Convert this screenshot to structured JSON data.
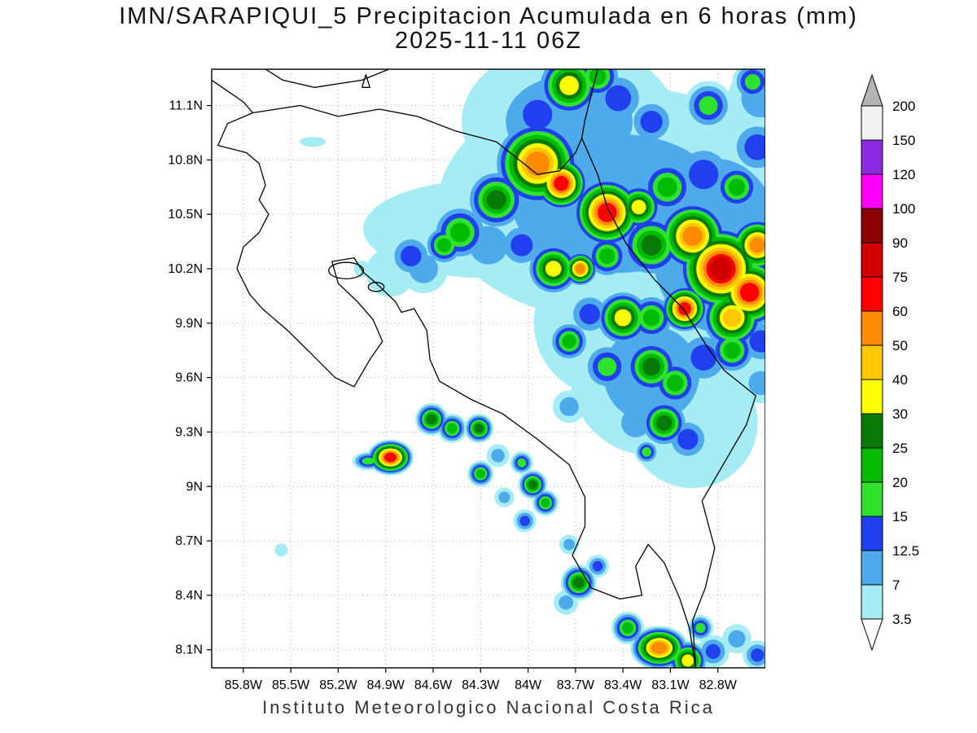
{
  "chart_data": {
    "type": "heatmap",
    "title_line1": "IMN/SARAPIQUI_5 Precipitacion Acumulada en 6 horas (mm)",
    "title_line2": "2025-11-11 06Z",
    "footer": "Instituto Meteorologico Nacional Costa Rica",
    "units": "mm",
    "proj": {
      "lon_left_w": 86.0,
      "lon_right_w": 82.5,
      "lat_top": 11.3,
      "lat_bottom": 8.0
    },
    "x_ticks": {
      "lons": [
        85.8,
        85.5,
        85.2,
        84.9,
        84.6,
        84.3,
        84.0,
        83.7,
        83.4,
        83.1,
        82.8
      ],
      "labels": [
        "85.8W",
        "85.5W",
        "85.2W",
        "84.9W",
        "84.6W",
        "84.3W",
        "84W",
        "83.7W",
        "83.4W",
        "83.1W",
        "82.8W"
      ]
    },
    "y_ticks": {
      "lats": [
        11.1,
        10.8,
        10.5,
        10.2,
        9.9,
        9.6,
        9.3,
        9.0,
        8.7,
        8.4,
        8.1
      ],
      "labels": [
        "11.1N",
        "10.8N",
        "10.5N",
        "10.2N",
        "9.9N",
        "9.6N",
        "9.3N",
        "9N",
        "8.7N",
        "8.4N",
        "8.1N"
      ]
    },
    "levels_mm": [
      3.5,
      7,
      12.5,
      15,
      20,
      25,
      30,
      40,
      50,
      60,
      75,
      90,
      100,
      120,
      150,
      200
    ],
    "level_colors": [
      "#A6ECF5",
      "#4FAAEB",
      "#2040F0",
      "#2EE22E",
      "#00BB00",
      "#077A07",
      "#FFFF00",
      "#FFC800",
      "#FF8C00",
      "#FF0000",
      "#D00000",
      "#8B0000",
      "#FF00FF",
      "#8A2BE2",
      "#F2F2F2"
    ],
    "colorbar": {
      "labels_top_to_bottom": [
        "200",
        "150",
        "120",
        "100",
        "90",
        "75",
        "60",
        "50",
        "40",
        "30",
        "25",
        "20",
        "15",
        "12.5",
        "7",
        "3.5"
      ],
      "arrow_top_color": "#B4B4B4",
      "arrow_bottom_color": "#FFFFFF"
    },
    "grid": {
      "visible": true,
      "style": "dotted",
      "color": "#AFAFAF"
    },
    "cells_format": "[lon_west_deg, lat_deg, radius_px, peak_level_index_1to15, x_stretch, y_stretch]",
    "cells": [
      [
        83.43,
        10.56,
        170,
        2,
        1.3,
        0.85
      ],
      [
        82.81,
        10.33,
        150,
        2,
        0.9,
        1.2
      ],
      [
        84.25,
        10.42,
        110,
        1,
        1.4,
        0.55
      ],
      [
        83.74,
        11.01,
        120,
        2,
        1.1,
        0.8
      ],
      [
        83.22,
        9.62,
        100,
        2,
        1,
        1
      ],
      [
        82.96,
        9.35,
        80,
        1,
        1,
        1
      ],
      [
        83.5,
        9.9,
        90,
        1,
        1,
        1
      ],
      [
        83.74,
        11.21,
        40,
        7,
        1,
        1
      ],
      [
        83.56,
        11.26,
        30,
        5,
        1,
        1
      ],
      [
        83.94,
        10.78,
        55,
        9,
        1,
        1
      ],
      [
        83.79,
        10.67,
        35,
        10,
        1,
        1
      ],
      [
        84.2,
        10.58,
        38,
        6,
        1,
        1
      ],
      [
        84.43,
        10.4,
        35,
        5,
        1,
        1
      ],
      [
        84.53,
        10.33,
        25,
        5,
        1,
        1
      ],
      [
        84.74,
        10.27,
        28,
        3,
        1,
        1
      ],
      [
        83.5,
        10.51,
        45,
        10,
        1,
        1
      ],
      [
        83.3,
        10.54,
        30,
        7,
        1,
        1
      ],
      [
        83.12,
        10.65,
        35,
        5,
        1,
        1
      ],
      [
        82.89,
        10.72,
        40,
        3,
        1,
        1
      ],
      [
        82.68,
        10.65,
        30,
        5,
        1,
        1
      ],
      [
        82.55,
        10.87,
        35,
        3,
        1,
        1
      ],
      [
        82.86,
        11.1,
        30,
        4,
        1,
        1
      ],
      [
        83.22,
        11.01,
        30,
        3,
        1,
        1
      ],
      [
        84.04,
        10.33,
        30,
        3,
        1,
        1
      ],
      [
        83.84,
        10.2,
        33,
        7,
        1,
        1
      ],
      [
        83.67,
        10.2,
        22,
        9,
        1,
        1
      ],
      [
        83.5,
        10.27,
        28,
        5,
        1,
        1
      ],
      [
        83.22,
        10.33,
        40,
        6,
        1,
        1
      ],
      [
        82.96,
        10.38,
        45,
        9,
        1,
        1
      ],
      [
        82.78,
        10.2,
        55,
        11,
        1,
        1
      ],
      [
        82.6,
        10.07,
        45,
        10,
        1,
        1
      ],
      [
        82.55,
        10.33,
        35,
        9,
        1,
        1
      ],
      [
        82.71,
        9.93,
        40,
        8,
        1,
        1
      ],
      [
        83.01,
        9.98,
        30,
        10,
        1,
        1
      ],
      [
        83.22,
        9.93,
        30,
        5,
        1,
        1
      ],
      [
        83.4,
        9.93,
        35,
        7,
        1,
        1
      ],
      [
        83.61,
        9.95,
        28,
        3,
        1,
        1
      ],
      [
        83.74,
        9.8,
        25,
        5,
        1,
        1
      ],
      [
        83.5,
        9.66,
        30,
        4,
        1,
        1
      ],
      [
        83.22,
        9.66,
        35,
        6,
        1,
        1
      ],
      [
        83.07,
        9.57,
        30,
        5,
        1,
        1
      ],
      [
        82.89,
        9.71,
        35,
        3,
        1,
        1
      ],
      [
        82.71,
        9.75,
        30,
        5,
        1,
        1
      ],
      [
        83.14,
        9.35,
        30,
        6,
        1,
        1
      ],
      [
        82.99,
        9.26,
        28,
        3,
        1,
        1
      ],
      [
        83.32,
        9.35,
        30,
        2,
        1,
        1
      ],
      [
        84.87,
        10.18,
        30,
        1,
        1,
        1
      ],
      [
        84.66,
        10.2,
        30,
        2,
        1,
        1
      ],
      [
        84.25,
        10.33,
        40,
        2,
        1,
        1
      ],
      [
        83.94,
        11.05,
        40,
        3,
        1,
        1
      ],
      [
        84.2,
        11.14,
        30,
        1,
        1,
        1
      ],
      [
        83.74,
        11.3,
        40,
        2,
        1,
        1
      ],
      [
        83.43,
        11.14,
        35,
        3,
        1,
        1
      ],
      [
        82.53,
        9.8,
        30,
        3,
        1,
        1
      ],
      [
        82.53,
        11.14,
        40,
        2,
        1,
        1
      ],
      [
        82.58,
        11.23,
        25,
        4,
        1,
        1
      ],
      [
        83.74,
        9.44,
        20,
        2,
        1,
        1
      ],
      [
        82.53,
        9.57,
        25,
        2,
        1,
        1
      ],
      [
        83.25,
        9.19,
        15,
        4,
        1,
        1
      ],
      [
        84.61,
        9.37,
        20,
        6,
        1,
        1
      ],
      [
        84.48,
        9.32,
        18,
        5,
        1,
        1
      ],
      [
        84.31,
        9.32,
        18,
        6,
        1,
        1
      ],
      [
        84.87,
        9.16,
        22,
        10,
        1.3,
        1
      ],
      [
        85.01,
        9.14,
        14,
        4,
        1.4,
        0.8
      ],
      [
        84.3,
        9.07,
        16,
        5,
        1,
        1
      ],
      [
        84.19,
        9.17,
        14,
        2,
        1,
        1
      ],
      [
        84.04,
        9.13,
        14,
        4,
        1,
        1
      ],
      [
        83.97,
        9.01,
        18,
        6,
        1,
        1
      ],
      [
        83.89,
        8.91,
        16,
        5,
        1,
        1
      ],
      [
        84.02,
        8.81,
        14,
        3,
        1,
        1
      ],
      [
        84.15,
        8.94,
        12,
        2,
        1,
        1
      ],
      [
        83.68,
        8.47,
        22,
        6,
        1,
        1
      ],
      [
        83.76,
        8.36,
        15,
        2,
        1,
        1
      ],
      [
        83.37,
        8.22,
        20,
        5,
        1,
        1
      ],
      [
        83.17,
        8.11,
        30,
        9,
        1.2,
        0.9
      ],
      [
        82.99,
        8.04,
        25,
        7,
        1,
        1
      ],
      [
        82.83,
        8.09,
        20,
        3,
        1,
        1
      ],
      [
        82.68,
        8.16,
        18,
        2,
        1,
        1
      ],
      [
        82.55,
        8.07,
        18,
        3,
        1,
        1
      ],
      [
        82.91,
        8.22,
        16,
        4,
        1,
        1
      ],
      [
        85.56,
        8.65,
        8,
        1,
        1,
        1
      ],
      [
        85.36,
        10.9,
        10,
        1,
        1.6,
        0.6
      ],
      [
        83.74,
        8.68,
        12,
        2,
        1,
        1
      ],
      [
        83.56,
        8.56,
        14,
        3,
        1,
        1
      ],
      [
        85.05,
        10.2,
        10,
        1,
        1,
        1
      ],
      [
        84.92,
        10.36,
        10,
        1,
        1,
        1
      ]
    ],
    "coastlines": {
      "nicaragua_pacific_coast": [
        [
          86.0,
          11.24
        ],
        [
          85.9,
          11.18
        ],
        [
          85.8,
          11.12
        ],
        [
          85.74,
          11.06
        ]
      ],
      "lake_nicaragua_shore": [
        [
          85.66,
          11.3
        ],
        [
          85.55,
          11.24
        ],
        [
          85.35,
          11.2
        ],
        [
          85.05,
          11.24
        ],
        [
          84.88,
          11.3
        ]
      ],
      "ometepe_island": [
        [
          85.05,
          11.2
        ],
        [
          85.0,
          11.2
        ],
        [
          85.025,
          11.27
        ],
        [
          85.05,
          11.2
        ]
      ],
      "northern_border": [
        [
          85.74,
          11.06
        ],
        [
          85.44,
          11.1
        ],
        [
          85.2,
          11.04
        ],
        [
          84.94,
          11.08
        ],
        [
          84.7,
          11.04
        ],
        [
          84.46,
          10.96
        ],
        [
          84.2,
          10.9
        ],
        [
          83.94,
          10.72
        ],
        [
          83.8,
          10.74
        ],
        [
          83.7,
          10.84
        ],
        [
          83.66,
          10.92
        ]
      ],
      "nicaragua_caribbean_coast": [
        [
          83.56,
          11.3
        ],
        [
          83.6,
          11.16
        ],
        [
          83.64,
          11.02
        ],
        [
          83.66,
          10.92
        ]
      ],
      "caribbean_coast_and_panama_border": [
        [
          83.66,
          10.92
        ],
        [
          83.56,
          10.72
        ],
        [
          83.5,
          10.54
        ],
        [
          83.38,
          10.34
        ],
        [
          83.2,
          10.14
        ],
        [
          83.02,
          9.98
        ],
        [
          82.86,
          9.76
        ],
        [
          82.76,
          9.64
        ],
        [
          82.56,
          9.5
        ],
        [
          82.62,
          9.34
        ],
        [
          82.74,
          9.16
        ],
        [
          82.9,
          8.92
        ],
        [
          82.82,
          8.66
        ],
        [
          82.88,
          8.44
        ],
        [
          82.96,
          8.26
        ],
        [
          82.94,
          8.0
        ]
      ],
      "pacific_coast": [
        [
          85.74,
          11.06
        ],
        [
          85.9,
          11.0
        ],
        [
          85.96,
          10.88
        ],
        [
          85.78,
          10.84
        ],
        [
          85.7,
          10.78
        ],
        [
          85.66,
          10.66
        ],
        [
          85.7,
          10.58
        ],
        [
          85.64,
          10.5
        ],
        [
          85.7,
          10.4
        ],
        [
          85.8,
          10.32
        ],
        [
          85.84,
          10.2
        ],
        [
          85.76,
          10.06
        ],
        [
          85.68,
          9.98
        ],
        [
          85.52,
          9.86
        ],
        [
          85.38,
          9.74
        ],
        [
          85.22,
          9.6
        ],
        [
          85.1,
          9.55
        ],
        [
          85.0,
          9.7
        ],
        [
          84.92,
          9.8
        ],
        [
          84.98,
          9.92
        ],
        [
          85.08,
          10.02
        ],
        [
          85.2,
          10.12
        ],
        [
          85.24,
          10.24
        ],
        [
          85.1,
          10.26
        ],
        [
          85.04,
          10.18
        ],
        [
          84.96,
          10.12
        ],
        [
          84.84,
          10.02
        ],
        [
          84.8,
          9.96
        ],
        [
          84.72,
          9.98
        ],
        [
          84.64,
          9.86
        ],
        [
          84.62,
          9.7
        ],
        [
          84.56,
          9.58
        ],
        [
          84.36,
          9.48
        ],
        [
          84.16,
          9.4
        ],
        [
          83.94,
          9.26
        ],
        [
          83.74,
          9.12
        ],
        [
          83.64,
          8.94
        ],
        [
          83.64,
          8.78
        ],
        [
          83.72,
          8.62
        ],
        [
          83.6,
          8.44
        ],
        [
          83.42,
          8.38
        ],
        [
          83.28,
          8.4
        ],
        [
          83.32,
          8.56
        ],
        [
          83.24,
          8.68
        ],
        [
          83.14,
          8.58
        ],
        [
          83.04,
          8.38
        ],
        [
          82.98,
          8.22
        ],
        [
          82.94,
          8.0
        ]
      ]
    },
    "islands_format": "[lon_west_deg, lat_deg, rx_deg, ry_deg]",
    "islands": [
      [
        85.15,
        10.19,
        0.11,
        0.045
      ],
      [
        84.96,
        10.1,
        0.05,
        0.025
      ]
    ]
  }
}
